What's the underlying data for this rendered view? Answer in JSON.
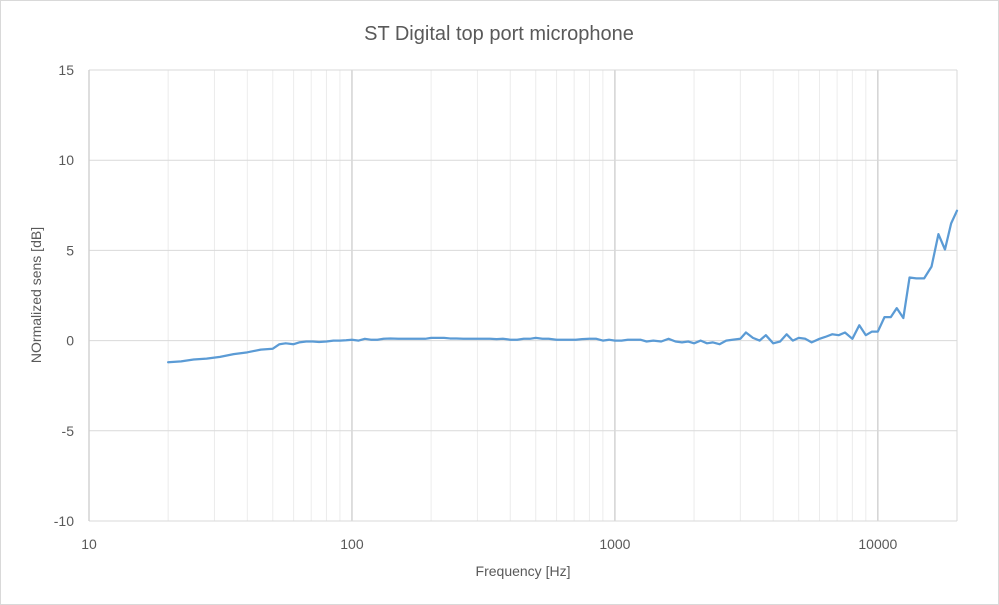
{
  "chart_data": {
    "type": "line",
    "title": "ST Digital top port microphone",
    "xlabel": "Frequency [Hz]",
    "ylabel": "NOrmalized sens [dB]",
    "xscale": "log",
    "xlim": [
      10,
      20000
    ],
    "ylim": [
      -10,
      15
    ],
    "x_ticks": [
      "10",
      "100",
      "1000",
      "10000"
    ],
    "y_ticks": [
      "-10",
      "-5",
      "0",
      "5",
      "10",
      "15"
    ],
    "grid": true,
    "legend": "none",
    "line_color": "#5b9bd5",
    "series": [
      {
        "x": [
          20,
          22.4,
          25,
          28,
          31.5,
          35.5,
          40,
          45,
          50,
          53,
          56,
          60,
          63,
          67,
          71,
          75,
          80,
          85,
          90,
          95,
          100,
          106,
          112,
          118,
          125,
          132,
          140,
          150,
          160,
          170,
          180,
          190,
          200,
          212,
          224,
          236,
          250,
          265,
          280,
          300,
          315,
          335,
          355,
          375,
          400,
          425,
          450,
          475,
          500,
          530,
          560,
          600,
          630,
          670,
          710,
          750,
          800,
          850,
          900,
          950,
          1000,
          1060,
          1120,
          1180,
          1250,
          1320,
          1400,
          1500,
          1600,
          1700,
          1800,
          1900,
          2000,
          2120,
          2240,
          2360,
          2500,
          2650,
          2800,
          3000,
          3150,
          3350,
          3550,
          3750,
          4000,
          4250,
          4500,
          4750,
          5000,
          5300,
          5600,
          6000,
          6300,
          6700,
          7100,
          7500,
          8000,
          8500,
          9000,
          9500,
          10000,
          10600,
          11200,
          11800,
          12500,
          13200,
          14000,
          15000,
          16000,
          17000,
          18000,
          19000,
          20000
        ],
        "y": [
          -1.2,
          -1.15,
          -1.05,
          -1.0,
          -0.9,
          -0.75,
          -0.65,
          -0.5,
          -0.45,
          -0.2,
          -0.15,
          -0.2,
          -0.1,
          -0.05,
          -0.05,
          -0.08,
          -0.05,
          0.0,
          0.0,
          0.02,
          0.05,
          0.0,
          0.1,
          0.05,
          0.05,
          0.1,
          0.12,
          0.1,
          0.1,
          0.1,
          0.1,
          0.1,
          0.15,
          0.15,
          0.15,
          0.12,
          0.12,
          0.1,
          0.1,
          0.1,
          0.1,
          0.1,
          0.08,
          0.1,
          0.05,
          0.05,
          0.1,
          0.1,
          0.15,
          0.1,
          0.1,
          0.05,
          0.05,
          0.05,
          0.05,
          0.08,
          0.1,
          0.1,
          0.0,
          0.05,
          0.0,
          0.0,
          0.05,
          0.05,
          0.05,
          -0.05,
          0.0,
          -0.05,
          0.1,
          -0.05,
          -0.1,
          -0.05,
          -0.15,
          0.0,
          -0.15,
          -0.1,
          -0.2,
          0.0,
          0.05,
          0.1,
          0.45,
          0.15,
          0.0,
          0.3,
          -0.15,
          -0.05,
          0.35,
          0.0,
          0.15,
          0.1,
          -0.1,
          0.1,
          0.2,
          0.35,
          0.3,
          0.45,
          0.1,
          0.85,
          0.3,
          0.5,
          0.5,
          1.3,
          1.3,
          1.8,
          1.25,
          3.5,
          3.45,
          3.45,
          4.1,
          5.9,
          5.05,
          6.5,
          7.2
        ]
      }
    ]
  }
}
